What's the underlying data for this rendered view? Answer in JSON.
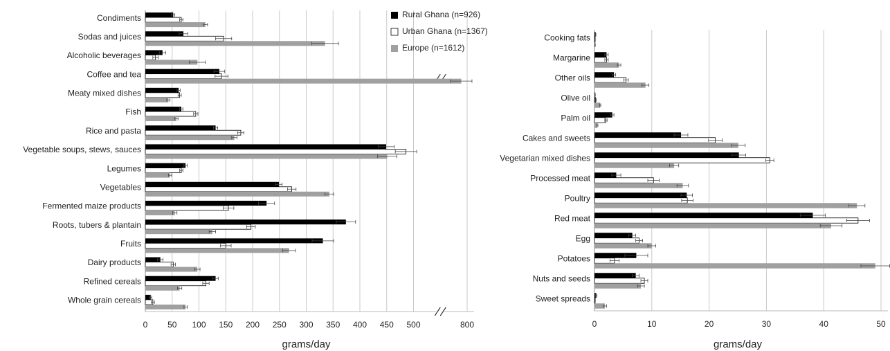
{
  "chart_data": [
    {
      "type": "bar",
      "orientation": "horizontal",
      "grid": true,
      "xlabel": "grams/day",
      "categories": [
        "Condiments",
        "Sodas and juices",
        "Alcoholic beverages",
        "Coffee and tea",
        "Meaty mixed dishes",
        "Fish",
        "Rice and pasta",
        "Vegetable soups, stews, sauces",
        "Legumes",
        "Vegetables",
        "Fermented maize products",
        "Roots, tubers & plantain",
        "Fruits",
        "Dairy products",
        "Refined cereals",
        "Whole grain cereals"
      ],
      "series": [
        {
          "name": "Rural Ghana (n=926)",
          "color": "#000000",
          "values": [
            52,
            71,
            32,
            138,
            62,
            67,
            131,
            449,
            75,
            249,
            226,
            374,
            331,
            28,
            131,
            10
          ],
          "errors": [
            3,
            8,
            6,
            10,
            3,
            3,
            4,
            15,
            3,
            6,
            15,
            18,
            20,
            5,
            5,
            2
          ]
        },
        {
          "name": "Urban Ghana (n=1367)",
          "color": "#ffffff",
          "values": [
            67,
            146,
            19,
            142,
            64,
            94,
            178,
            486,
            67,
            273,
            155,
            197,
            150,
            52,
            113,
            14
          ],
          "errors": [
            3,
            15,
            5,
            12,
            3,
            4,
            6,
            20,
            3,
            8,
            10,
            8,
            10,
            4,
            6,
            3
          ]
        },
        {
          "name": "Europe (n=1612)",
          "color": "#a0a0a0",
          "values": [
            112,
            335,
            97,
            789,
            43,
            58,
            166,
            451,
            46,
            343,
            55,
            125,
            268,
            97,
            64,
            75
          ],
          "errors": [
            4,
            25,
            15,
            20,
            3,
            3,
            5,
            18,
            3,
            8,
            4,
            6,
            12,
            5,
            4,
            3
          ]
        }
      ],
      "xlim": [
        0,
        800
      ],
      "xticks": [
        0,
        50,
        100,
        150,
        200,
        250,
        300,
        350,
        400,
        450,
        500,
        800
      ],
      "axis_break": [
        550,
        750
      ],
      "legend": "top-right"
    },
    {
      "type": "bar",
      "orientation": "horizontal",
      "grid": true,
      "xlabel": "grams/day",
      "categories": [
        "Cooking fats",
        "Margarine",
        "Other oils",
        "Olive oil",
        "Palm oil",
        "Cakes and sweets",
        "Vegetarian mixed dishes",
        "Processed meat",
        "Poultry",
        "Red meat",
        "Egg",
        "Potatoes",
        "Nuts and seeds",
        "Sweet spreads"
      ],
      "series": [
        {
          "color": "#000000",
          "values": [
            0.2,
            2.1,
            3.4,
            0.1,
            3.1,
            15.1,
            25.2,
            3.8,
            16.1,
            38.1,
            6.6,
            7.3,
            7.2,
            0.3
          ],
          "errors": [
            0.05,
            0.3,
            0.3,
            0.05,
            0.3,
            1.2,
            1.2,
            0.8,
            1,
            2.2,
            0.6,
            2,
            0.6,
            0.1
          ]
        },
        {
          "color": "#ffffff",
          "values": [
            0.1,
            2.1,
            5.5,
            0.2,
            2.0,
            21.1,
            30.6,
            10.3,
            16.2,
            46.0,
            7.8,
            3.5,
            8.7,
            0.1
          ],
          "errors": [
            0.05,
            0.3,
            0.4,
            0.1,
            0.2,
            1.2,
            0.7,
            1,
            1,
            2,
            0.6,
            0.8,
            0.6,
            0.05
          ]
        },
        {
          "color": "#a0a0a0",
          "values": [
            0.1,
            4.3,
            8.9,
            1.0,
            0.5,
            25.1,
            13.9,
            15.4,
            45.8,
            41.3,
            10.0,
            49.0,
            8.1,
            1.8
          ],
          "errors": [
            0.05,
            0.3,
            0.6,
            0.1,
            0.1,
            1.2,
            0.8,
            1,
            1.4,
            1.9,
            0.7,
            2.5,
            0.6,
            0.3
          ]
        }
      ],
      "xlim": [
        0,
        50
      ],
      "xticks": [
        0,
        10,
        20,
        30,
        40,
        50
      ]
    }
  ]
}
